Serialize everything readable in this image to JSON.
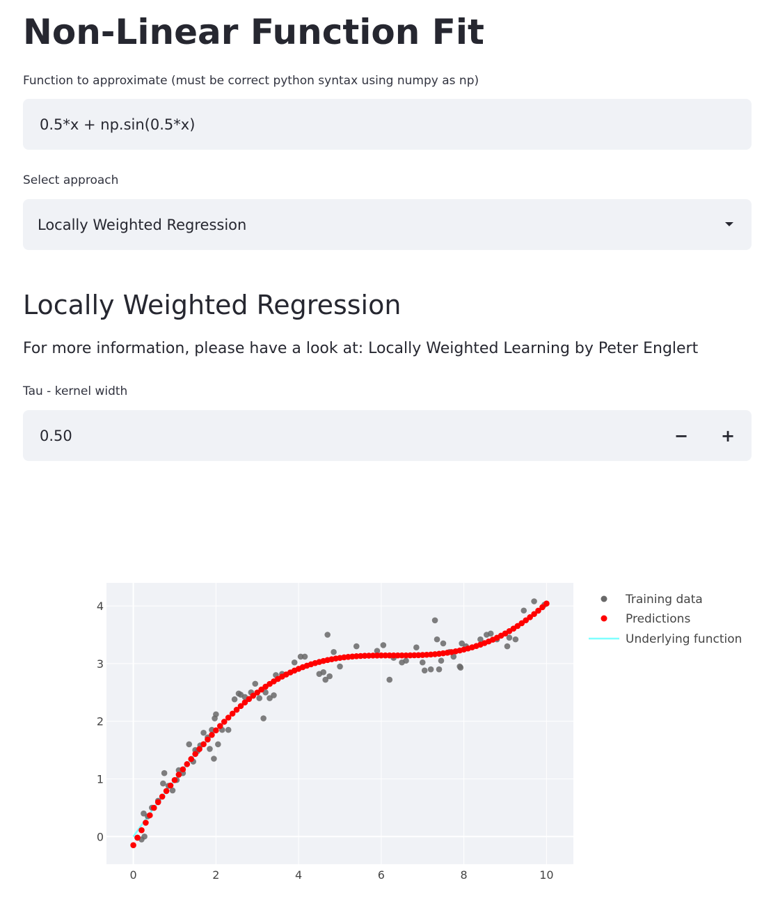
{
  "page": {
    "title": "Non-Linear Function Fit"
  },
  "function_field": {
    "label": "Function to approximate (must be correct python syntax using numpy as np)",
    "value": "0.5*x + np.sin(0.5*x)"
  },
  "approach_select": {
    "label": "Select approach",
    "selected": "Locally Weighted Regression"
  },
  "section": {
    "title": "Locally Weighted Regression",
    "info": "For more information, please have a look at: Locally Weighted Learning by Peter Englert"
  },
  "tau_field": {
    "label": "Tau - kernel width",
    "value": "0.50",
    "minus_label": "−",
    "plus_label": "+"
  },
  "colors": {
    "training": "#696969",
    "predictions": "#ff0000",
    "underlying": "#7fffff",
    "plot_bg": "#f0f2f6",
    "grid": "#ffffff"
  },
  "chart_data": {
    "type": "scatter",
    "title": "",
    "xlabel": "",
    "ylabel": "",
    "xlim": [
      -0.65,
      10.65
    ],
    "ylim": [
      -0.48,
      4.4
    ],
    "x_ticks": [
      0,
      2,
      4,
      6,
      8,
      10
    ],
    "y_ticks": [
      0,
      1,
      2,
      3,
      4
    ],
    "grid": true,
    "legend_position": "right",
    "legend": [
      "Training data",
      "Predictions",
      "Underlying function"
    ],
    "series": [
      {
        "name": "Training data",
        "mode": "markers",
        "x": [
          0.1,
          0.2,
          0.25,
          0.27,
          0.35,
          0.45,
          0.6,
          0.72,
          0.75,
          0.85,
          0.95,
          1.05,
          1.1,
          1.2,
          1.35,
          1.45,
          1.5,
          1.55,
          1.62,
          1.7,
          1.8,
          1.85,
          1.9,
          1.95,
          1.97,
          2.0,
          2.05,
          2.15,
          2.3,
          2.45,
          2.55,
          2.6,
          2.7,
          2.85,
          2.95,
          3.05,
          3.15,
          3.2,
          3.3,
          3.4,
          3.45,
          3.6,
          3.9,
          4.05,
          4.15,
          4.5,
          4.6,
          4.65,
          4.7,
          4.75,
          4.85,
          5.0,
          5.4,
          5.9,
          6.05,
          6.2,
          6.3,
          6.5,
          6.6,
          6.85,
          7.0,
          7.05,
          7.2,
          7.3,
          7.35,
          7.4,
          7.45,
          7.5,
          7.65,
          7.75,
          7.9,
          7.92,
          7.95,
          8.05,
          8.4,
          8.55,
          8.65,
          8.8,
          9.05,
          9.1,
          9.25,
          9.45,
          9.7,
          9.95
        ],
        "y": [
          -0.02,
          -0.05,
          0.4,
          0.0,
          0.35,
          0.5,
          0.62,
          0.92,
          1.1,
          0.88,
          0.8,
          0.98,
          1.15,
          1.1,
          1.6,
          1.3,
          1.5,
          1.48,
          1.58,
          1.8,
          1.72,
          1.52,
          1.85,
          1.35,
          2.05,
          2.12,
          1.6,
          1.85,
          1.85,
          2.38,
          2.48,
          2.46,
          2.42,
          2.5,
          2.65,
          2.4,
          2.05,
          2.5,
          2.4,
          2.45,
          2.8,
          2.82,
          3.02,
          3.12,
          3.12,
          2.82,
          2.85,
          2.72,
          3.5,
          2.78,
          3.2,
          2.95,
          3.3,
          3.22,
          3.32,
          2.72,
          3.1,
          3.02,
          3.05,
          3.28,
          3.02,
          2.88,
          2.9,
          3.75,
          3.42,
          2.9,
          3.05,
          3.35,
          3.2,
          3.12,
          2.95,
          2.93,
          3.35,
          3.3,
          3.42,
          3.5,
          3.52,
          3.42,
          3.3,
          3.45,
          3.42,
          3.92,
          4.08,
          4.02
        ]
      },
      {
        "name": "Predictions",
        "mode": "markers",
        "x_range": [
          0,
          10
        ],
        "count": 101
      },
      {
        "name": "Underlying function",
        "mode": "line",
        "expression": "0.5*x + np.sin(0.5*x)"
      }
    ]
  }
}
